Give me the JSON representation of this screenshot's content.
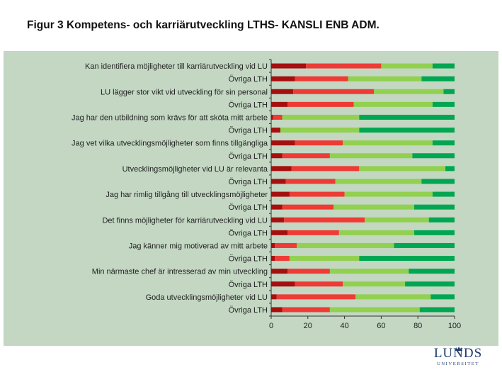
{
  "title": "Figur 3 Kompetens- och karriärutveckling  LTHS- KANSLI ENB ADM.",
  "logo": {
    "name": "LUNDS",
    "sub": "UNIVERSITET"
  },
  "colors": {
    "dark_red": "#a50f0f",
    "red": "#ee3b36",
    "light_green": "#92d050",
    "green": "#00a651",
    "panel": "#c3d7c3"
  },
  "chart_data": {
    "type": "stacked-bar-horizontal",
    "title": "Figur 3 Kompetens- och karriärutveckling  LTHS- KANSLI ENB ADM.",
    "xlim": [
      0,
      100
    ],
    "ticks": [
      "0",
      "20",
      "40",
      "60",
      "80",
      "100"
    ],
    "categories": [
      "Kan identifiera möjligheter till karriärutveckling vid LU",
      "Övriga LTH",
      "LU lägger stor vikt vid utveckling för sin personal",
      "Övriga LTH",
      "Jag har den utbildning som krävs för att sköta mitt arbete",
      "Övriga LTH",
      "Jag vet vilka utvecklingsmöjligheter som finns tillgängliga",
      "Övriga LTH",
      "Utvecklingsmöjligheter vid LU är relevanta",
      "Övriga LTH",
      "Jag har rimlig tillgång till utvecklingsmöjligheter",
      "Övriga LTH",
      "Det finns möjligheter för karriärutveckling vid LU",
      "Övriga LTH",
      "Jag känner mig motiverad av mitt arbete",
      "Övriga LTH",
      "Min närmaste chef är intresserad av min utveckling",
      "Övriga LTH",
      "Goda utvecklingsmöjligheter vid LU",
      "Övriga LTH"
    ],
    "series": [
      {
        "name": "dark_red",
        "color": "#a50f0f",
        "values": [
          19,
          13,
          12,
          9,
          1,
          5,
          13,
          6,
          11,
          8,
          10,
          6,
          7,
          9,
          2,
          2,
          9,
          13,
          3,
          6
        ]
      },
      {
        "name": "red",
        "color": "#ee3b36",
        "values": [
          41,
          29,
          44,
          36,
          5,
          0,
          26,
          26,
          37,
          27,
          30,
          28,
          44,
          28,
          12,
          8,
          23,
          26,
          43,
          26
        ]
      },
      {
        "name": "light_green",
        "color": "#92d050",
        "values": [
          28,
          40,
          38,
          43,
          42,
          43,
          49,
          45,
          47,
          47,
          48,
          44,
          35,
          41,
          53,
          38,
          43,
          34,
          41,
          49
        ]
      },
      {
        "name": "green",
        "color": "#00a651",
        "values": [
          12,
          18,
          6,
          12,
          52,
          52,
          12,
          23,
          5,
          18,
          12,
          22,
          14,
          22,
          33,
          52,
          25,
          27,
          13,
          19
        ]
      }
    ]
  }
}
